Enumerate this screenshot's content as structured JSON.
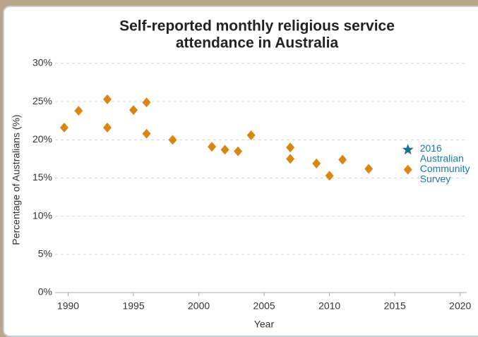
{
  "chart_data": {
    "type": "scatter",
    "title": [
      "Self-reported monthly religious service",
      "attendance in Australia"
    ],
    "x_label": "Year",
    "y_label": "Percentage of Australians (%)",
    "series": [
      {
        "color": "#d98714",
        "marker": "diamond",
        "x": [
          1989.7,
          1990.8,
          1993,
          1993,
          1995,
          1996,
          1996,
          1998,
          2001,
          2002,
          2003,
          2004,
          2007,
          2007,
          2009,
          2010,
          2011,
          2013,
          2016
        ],
        "values": [
          21.6,
          23.8,
          25.3,
          21.6,
          23.9,
          24.9,
          20.8,
          20.0,
          19.1,
          18.7,
          18.5,
          20.6,
          19.0,
          17.5,
          16.9,
          15.3,
          17.4,
          16.2,
          16.1
        ]
      },
      {
        "color": "#1f6f8f",
        "marker": "star",
        "x": [
          2016
        ],
        "values": [
          18.7
        ]
      }
    ],
    "annotation": [
      "2016",
      "Australian",
      "Community",
      "Survey"
    ],
    "xlim": [
      1989,
      2020.5
    ],
    "xticks": [
      1990,
      1995,
      2000,
      2005,
      2010,
      2015,
      2020
    ],
    "ylim": [
      0,
      30
    ],
    "yticks": [
      {
        "value": 0,
        "label": "0%"
      },
      {
        "value": 5,
        "label": "5%"
      },
      {
        "value": 10,
        "label": "10%"
      },
      {
        "value": 15,
        "label": "15%"
      },
      {
        "value": 20,
        "label": "20%"
      },
      {
        "value": 25,
        "label": "25%"
      },
      {
        "value": 30,
        "label": "30%"
      }
    ],
    "grid": true
  }
}
